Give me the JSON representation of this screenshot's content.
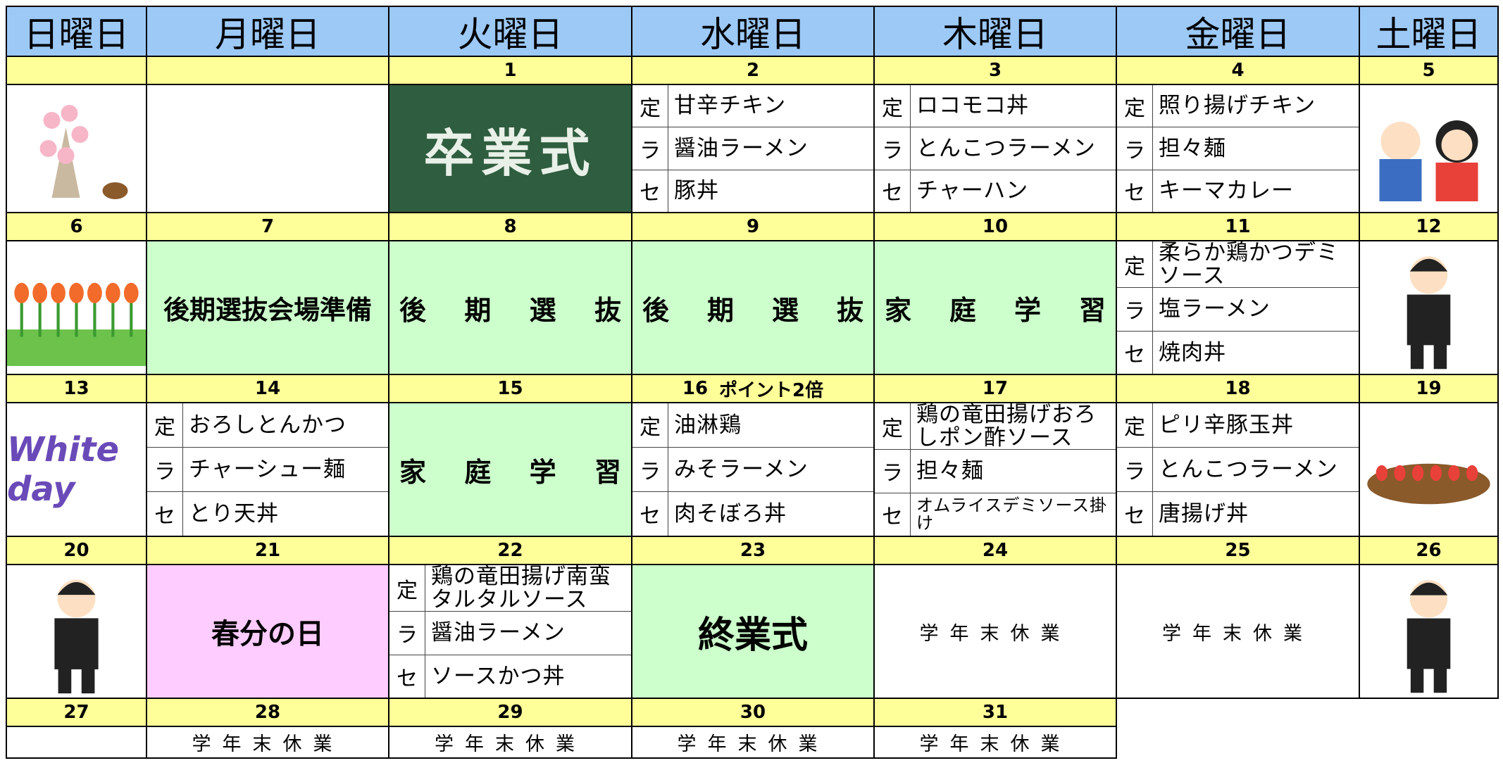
{
  "header": {
    "days": [
      "日曜日",
      "月曜日",
      "火曜日",
      "水曜日",
      "木曜日",
      "金曜日",
      "土曜日"
    ]
  },
  "weeks": [
    {
      "dates": [
        null,
        null,
        1,
        2,
        3,
        4,
        5
      ],
      "cells": [
        null,
        null,
        {
          "image_text": "卒業式"
        },
        {
          "menu": [
            [
              "定",
              "甘辛チキン"
            ],
            [
              "ラ",
              "醤油ラーメン"
            ],
            [
              "セ",
              "豚丼"
            ]
          ]
        },
        {
          "menu": [
            [
              "定",
              "ロコモコ丼"
            ],
            [
              "ラ",
              "とんこつラーメン"
            ],
            [
              "セ",
              "チャーハン"
            ]
          ]
        },
        {
          "menu": [
            [
              "定",
              "照り揚げチキン"
            ],
            [
              "ラ",
              "担々麺"
            ],
            [
              "セ",
              "キーマカレー"
            ]
          ]
        },
        null
      ]
    },
    {
      "dates": [
        6,
        7,
        8,
        9,
        10,
        11,
        12
      ],
      "cells": [
        null,
        {
          "text": "後期選抜会場準備",
          "bg": "#ccffcc"
        },
        {
          "text": "後期選抜",
          "bg": "#ccffcc"
        },
        {
          "text": "後期選抜",
          "bg": "#ccffcc"
        },
        {
          "text": "家庭学習",
          "bg": "#ccffcc"
        },
        {
          "menu": [
            [
              "定",
              "柔らか鶏かつデミソース"
            ],
            [
              "ラ",
              "塩ラーメン"
            ],
            [
              "セ",
              "焼肉丼"
            ]
          ]
        },
        null
      ]
    },
    {
      "dates": [
        13,
        14,
        15,
        {
          "date": 16,
          "note": "ポイント2倍"
        },
        17,
        18,
        19
      ],
      "cells": [
        {
          "image_text": "White day"
        },
        {
          "menu": [
            [
              "定",
              "おろしとんかつ"
            ],
            [
              "ラ",
              "チャーシュー麺"
            ],
            [
              "セ",
              "とり天丼"
            ]
          ]
        },
        {
          "text": "家庭学習",
          "bg": "#ccffcc"
        },
        {
          "menu": [
            [
              "定",
              "油淋鶏"
            ],
            [
              "ラ",
              "みそラーメン"
            ],
            [
              "セ",
              "肉そぼろ丼"
            ]
          ]
        },
        {
          "menu": [
            [
              "定",
              "鶏の竜田揚げおろしポン酢ソース"
            ],
            [
              "ラ",
              "担々麺"
            ],
            [
              "セ",
              "オムライスデミソース掛け"
            ]
          ]
        },
        {
          "menu": [
            [
              "定",
              "ピリ辛豚玉丼"
            ],
            [
              "ラ",
              "とんこつラーメン"
            ],
            [
              "セ",
              "唐揚げ丼"
            ]
          ]
        },
        null
      ]
    },
    {
      "dates": [
        20,
        21,
        22,
        23,
        24,
        25,
        26
      ],
      "cells": [
        null,
        {
          "text": "春分の日",
          "bg": "#ffccff"
        },
        {
          "menu": [
            [
              "定",
              "鶏の竜田揚げ南蛮タルタルソース"
            ],
            [
              "ラ",
              "醤油ラーメン"
            ],
            [
              "セ",
              "ソースかつ丼"
            ]
          ]
        },
        {
          "text": "終業式",
          "bg": "#ccffcc"
        },
        {
          "text": "学年末休業",
          "bg": "#ffffff"
        },
        {
          "text": "学年末休業",
          "bg": "#ffffff"
        },
        null
      ]
    },
    {
      "dates": [
        27,
        28,
        29,
        30,
        31
      ],
      "cells": [
        null,
        {
          "text": "学年末休業",
          "bg": "#ffffff"
        },
        {
          "text": "学年末休業",
          "bg": "#ffffff"
        },
        {
          "text": "学年末休業",
          "bg": "#ffffff"
        },
        {
          "text": "学年末休業",
          "bg": "#ffffff"
        }
      ]
    }
  ]
}
